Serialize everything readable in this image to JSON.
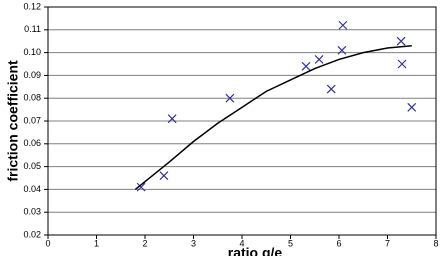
{
  "chart_data": {
    "type": "scatter",
    "xlabel": "ratio g/e",
    "ylabel": "friction coefficient",
    "xlim": [
      0,
      8
    ],
    "xticks": [
      0,
      1,
      2,
      3,
      4,
      5,
      6,
      7,
      8
    ],
    "ylim": [
      0.02,
      0.12
    ],
    "yticks": [
      0.02,
      0.03,
      0.04,
      0.05,
      0.06,
      0.07,
      0.08,
      0.09,
      {
        "value": 0.1,
        "label": "0.10"
      },
      0.11,
      0.12
    ],
    "grid": true,
    "series": [
      {
        "type": "scatter",
        "color": "#333399",
        "x": [
          1.92,
          2.39,
          2.56,
          3.75,
          5.32,
          5.59,
          5.84,
          6.06,
          6.08,
          7.28,
          7.3,
          7.5
        ],
        "values": [
          0.041,
          0.046,
          0.071,
          0.08,
          0.094,
          0.097,
          0.084,
          0.101,
          0.112,
          0.105,
          0.095,
          0.076
        ]
      },
      {
        "type": "line",
        "color": "#000000",
        "x": [
          1.8,
          2.5,
          3,
          3.5,
          4,
          4.5,
          5,
          5.5,
          6,
          6.5,
          7,
          7.5
        ],
        "values": [
          0.04,
          0.052,
          0.061,
          0.069,
          0.076,
          0.083,
          0.088,
          0.093,
          0.097,
          0.1,
          0.102,
          0.103
        ]
      }
    ]
  }
}
